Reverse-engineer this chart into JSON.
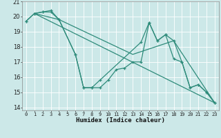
{
  "xlabel": "Humidex (Indice chaleur)",
  "bg_color": "#cce8e8",
  "grid_color": "#ffffff",
  "line_color": "#2e8b7a",
  "xlim": [
    -0.5,
    23.5
  ],
  "ylim": [
    13.8,
    21.0
  ],
  "yticks": [
    14,
    15,
    16,
    17,
    18,
    19,
    20,
    21
  ],
  "xticks": [
    0,
    1,
    2,
    3,
    4,
    5,
    6,
    7,
    8,
    9,
    10,
    11,
    12,
    13,
    14,
    15,
    16,
    17,
    18,
    19,
    20,
    21,
    22,
    23
  ],
  "series": [
    {
      "comment": "straight line from (1,20.2) to (23,14.3)",
      "x": [
        1,
        23
      ],
      "y": [
        20.2,
        14.3
      ]
    },
    {
      "x": [
        1,
        4,
        13,
        18,
        23
      ],
      "y": [
        20.2,
        19.8,
        17.5,
        18.4,
        14.3
      ]
    },
    {
      "x": [
        0,
        1,
        2,
        3,
        4,
        6,
        7,
        8,
        9,
        10,
        11,
        12,
        13,
        14,
        15,
        16,
        17,
        18,
        19,
        20,
        21,
        22,
        23
      ],
      "y": [
        19.7,
        20.2,
        20.3,
        20.3,
        19.8,
        17.5,
        15.3,
        15.3,
        15.3,
        15.8,
        16.5,
        16.6,
        17.0,
        17.0,
        19.6,
        18.4,
        18.8,
        18.4,
        17.0,
        15.3,
        15.5,
        15.0,
        14.3
      ]
    },
    {
      "comment": "line: starts at 0=19.7, 1=20.2, peak 3=20.4, 4=19.8, drops to 6=17.5, 9=15.8, 10=15.8",
      "x": [
        0,
        1,
        2,
        3,
        4,
        6,
        7,
        8,
        9,
        14,
        15,
        16,
        17,
        18,
        19,
        20,
        21,
        22,
        23
      ],
      "y": [
        19.7,
        20.2,
        20.3,
        20.4,
        19.8,
        17.5,
        15.3,
        15.3,
        15.8,
        18.3,
        19.6,
        18.4,
        18.8,
        17.2,
        17.0,
        15.3,
        15.5,
        15.0,
        14.3
      ]
    }
  ]
}
